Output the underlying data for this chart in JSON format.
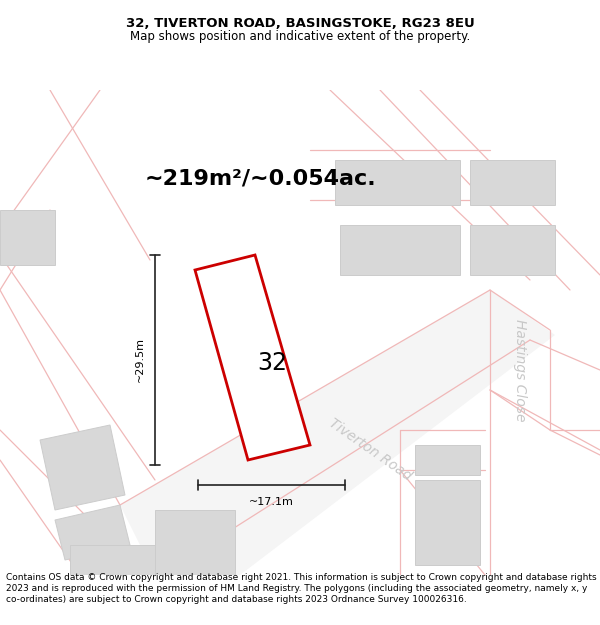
{
  "title_line1": "32, TIVERTON ROAD, BASINGSTOKE, RG23 8EU",
  "title_line2": "Map shows position and indicative extent of the property.",
  "area_text": "~219m²/~0.054ac.",
  "label_number": "32",
  "dim_width": "~17.1m",
  "dim_height": "~29.5m",
  "road_label1": "Tiverton Road",
  "road_label2": "Hastings Close",
  "footer_text": "Contains OS data © Crown copyright and database right 2021. This information is subject to Crown copyright and database rights 2023 and is reproduced with the permission of HM Land Registry. The polygons (including the associated geometry, namely x, y co-ordinates) are subject to Crown copyright and database rights 2023 Ordnance Survey 100026316.",
  "bg_color": "#ffffff",
  "map_bg": "#ffffff",
  "road_stroke": "#f0b8b8",
  "building_fill": "#d8d8d8",
  "building_edge": "#cccccc",
  "plot_stroke": "#cc0000",
  "plot_fill": "#ffffff",
  "dim_line_color": "#222222",
  "text_color": "#000000",
  "road_text_color": "#c8c8c8",
  "title_fontsize": 9.5,
  "subtitle_fontsize": 8.5,
  "area_fontsize": 16,
  "label_fontsize": 17,
  "dim_fontsize": 8,
  "road_fontsize": 10,
  "footer_fontsize": 6.5
}
